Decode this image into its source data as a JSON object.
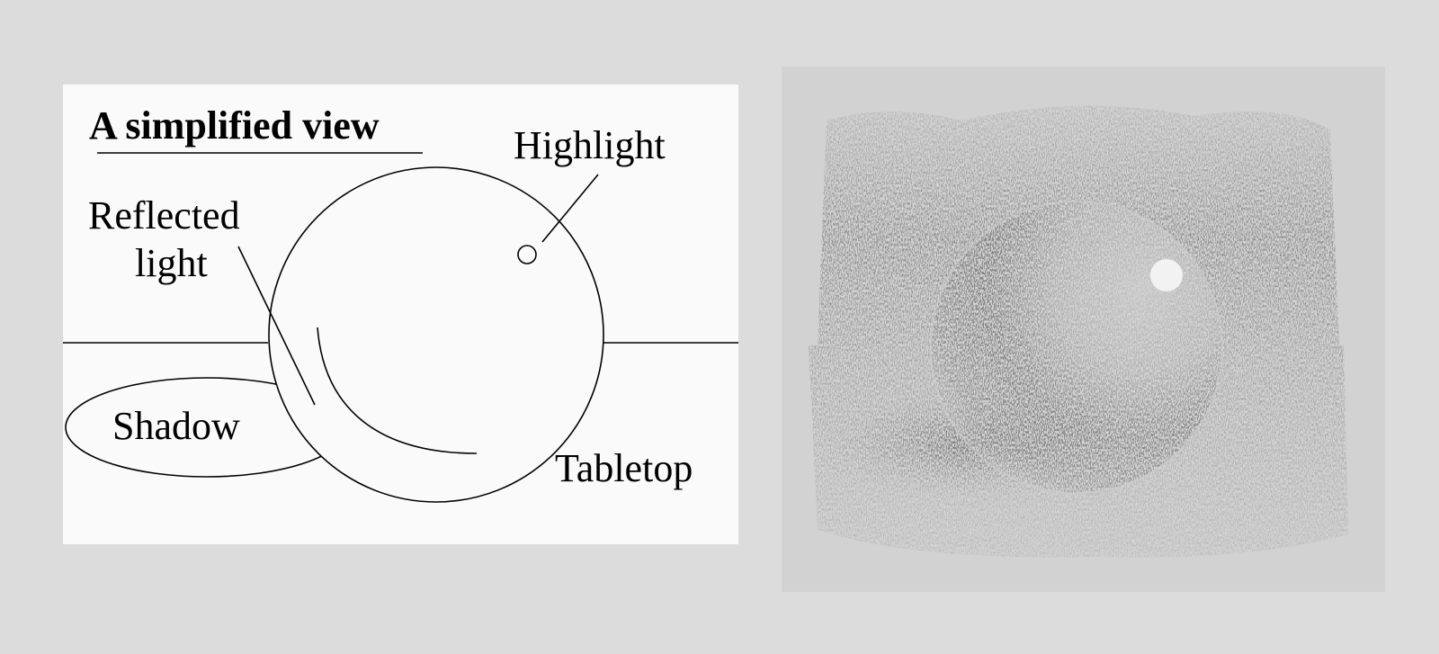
{
  "diagram": {
    "title": "A simplified view",
    "labels": {
      "highlight": "Highlight",
      "reflected_line1": "Reflected",
      "reflected_line2": "light",
      "shadow": "Shadow",
      "tabletop": "Tabletop"
    }
  },
  "colors": {
    "page_background": "#dcdcdc",
    "diagram_background": "#fafafa",
    "drawing_background": "#d2d2d2",
    "ink": "#000000"
  }
}
